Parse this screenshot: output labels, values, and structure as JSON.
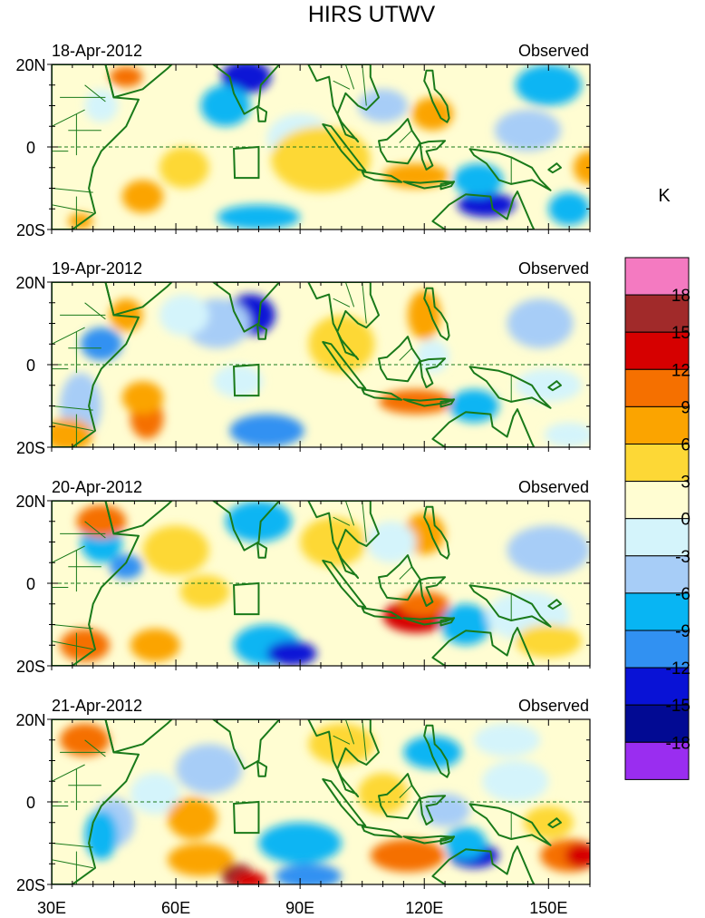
{
  "chart_data": {
    "type": "heatmap",
    "title": "HIRS UTWV",
    "colorbar": {
      "label": "K",
      "levels": [
        -18,
        -15,
        -12,
        -9,
        -6,
        -3,
        0,
        3,
        6,
        9,
        12,
        15,
        18
      ],
      "level_labels": [
        "18",
        "15",
        "12",
        "9",
        "6",
        "3",
        "0",
        "-3",
        "-6",
        "-9",
        "-12",
        "-15",
        "-18"
      ],
      "colors_top_to_bottom": [
        "#f47ac1",
        "#a12a2a",
        "#d60000",
        "#f57000",
        "#fba400",
        "#fdd836",
        "#fffdd2",
        "#d4f4fb",
        "#a7cdf7",
        "#08b5f3",
        "#3191f2",
        "#0912d6",
        "#020a93",
        "#9a2df0"
      ]
    },
    "x_ticks": [
      "30E",
      "60E",
      "90E",
      "120E",
      "150E"
    ],
    "x_tick_values": [
      30,
      60,
      90,
      120,
      150
    ],
    "xlim": [
      30,
      160
    ],
    "y_ticks": [
      "20N",
      "0",
      "20S"
    ],
    "y_tick_values": [
      20,
      0,
      -20
    ],
    "ylim": [
      -20,
      20
    ],
    "panels": [
      {
        "date": "18-Apr-2012",
        "label": "Observed"
      },
      {
        "date": "19-Apr-2012",
        "label": "Observed"
      },
      {
        "date": "20-Apr-2012",
        "label": "Observed"
      },
      {
        "date": "21-Apr-2012",
        "label": "Observed"
      }
    ],
    "anomaly_blobs": [
      [
        [
          37,
          -18,
          3,
          2,
          6
        ],
        [
          48,
          17,
          4,
          2.5,
          9
        ],
        [
          42,
          10,
          4,
          4,
          -3
        ],
        [
          52,
          -12,
          5,
          4,
          6
        ],
        [
          77,
          17,
          6,
          4,
          -15
        ],
        [
          72,
          10,
          6,
          5,
          -9
        ],
        [
          90,
          2,
          8,
          6,
          -3
        ],
        [
          80,
          -17,
          10,
          3,
          -9
        ],
        [
          118,
          -7,
          8,
          3,
          6
        ],
        [
          135,
          -14,
          7,
          3,
          -15
        ],
        [
          133,
          -8,
          6,
          4,
          -9
        ],
        [
          122,
          8,
          5,
          4,
          6
        ],
        [
          110,
          10,
          6,
          4,
          -6
        ],
        [
          150,
          15,
          8,
          5,
          -9
        ],
        [
          145,
          4,
          8,
          5,
          -6
        ],
        [
          155,
          -15,
          5,
          4,
          -9
        ],
        [
          95,
          -3,
          12,
          8,
          3
        ],
        [
          62,
          -5,
          6,
          5,
          3
        ],
        [
          160,
          -5,
          4,
          4,
          6
        ]
      ],
      [
        [
          78,
          12,
          6,
          5,
          -15
        ],
        [
          70,
          10,
          8,
          6,
          -6
        ],
        [
          42,
          5,
          5,
          4,
          -12
        ],
        [
          37,
          -10,
          5,
          8,
          -6
        ],
        [
          34,
          -17,
          6,
          4,
          6
        ],
        [
          48,
          12,
          4,
          4,
          6
        ],
        [
          53,
          -13,
          4,
          5,
          9
        ],
        [
          52,
          -8,
          5,
          4,
          6
        ],
        [
          82,
          -16,
          9,
          4,
          -12
        ],
        [
          75,
          -4,
          6,
          4,
          -3
        ],
        [
          118,
          -9,
          9,
          3,
          9
        ],
        [
          132,
          -10,
          6,
          4,
          -9
        ],
        [
          120,
          12,
          4,
          6,
          6
        ],
        [
          122,
          2,
          4,
          4,
          -3
        ],
        [
          148,
          10,
          8,
          6,
          -6
        ],
        [
          150,
          -5,
          8,
          4,
          -3
        ],
        [
          100,
          5,
          8,
          7,
          3
        ],
        [
          155,
          -17,
          6,
          3,
          -3
        ],
        [
          62,
          12,
          6,
          5,
          -3
        ]
      ],
      [
        [
          42,
          10,
          5,
          5,
          -9
        ],
        [
          48,
          4,
          4,
          3,
          -12
        ],
        [
          38,
          -15,
          6,
          4,
          9
        ],
        [
          42,
          15,
          6,
          4,
          9
        ],
        [
          55,
          -15,
          6,
          4,
          6
        ],
        [
          60,
          8,
          8,
          6,
          3
        ],
        [
          80,
          15,
          8,
          5,
          -9
        ],
        [
          82,
          -15,
          8,
          5,
          -9
        ],
        [
          88,
          -17,
          6,
          3,
          -15
        ],
        [
          118,
          -8,
          8,
          4,
          12
        ],
        [
          120,
          -5,
          6,
          3,
          9
        ],
        [
          130,
          -10,
          6,
          5,
          -9
        ],
        [
          145,
          -8,
          10,
          6,
          -3
        ],
        [
          150,
          -14,
          8,
          4,
          3
        ],
        [
          120,
          12,
          5,
          5,
          6
        ],
        [
          112,
          10,
          6,
          5,
          -3
        ],
        [
          98,
          10,
          8,
          6,
          3
        ],
        [
          150,
          8,
          10,
          6,
          -6
        ],
        [
          67,
          -2,
          6,
          4,
          3
        ]
      ],
      [
        [
          38,
          15,
          6,
          4,
          9
        ],
        [
          45,
          -5,
          5,
          6,
          -6
        ],
        [
          42,
          -8,
          4,
          6,
          -9
        ],
        [
          55,
          2,
          6,
          5,
          -3
        ],
        [
          68,
          8,
          8,
          6,
          -6
        ],
        [
          64,
          -4,
          6,
          5,
          6
        ],
        [
          66,
          -14,
          8,
          4,
          6
        ],
        [
          75,
          -18,
          4,
          3,
          15
        ],
        [
          78,
          -19,
          4,
          2,
          12
        ],
        [
          92,
          -18,
          8,
          3,
          -12
        ],
        [
          90,
          -10,
          10,
          5,
          -9
        ],
        [
          116,
          -13,
          9,
          4,
          9
        ],
        [
          132,
          -13,
          6,
          3,
          -15
        ],
        [
          130,
          -10,
          5,
          4,
          -9
        ],
        [
          155,
          -13,
          7,
          4,
          9
        ],
        [
          158,
          -13,
          4,
          3,
          12
        ],
        [
          122,
          12,
          7,
          4,
          -9
        ],
        [
          125,
          -2,
          6,
          4,
          -6
        ],
        [
          142,
          5,
          8,
          5,
          -3
        ],
        [
          110,
          2,
          6,
          5,
          3
        ],
        [
          150,
          -5,
          6,
          4,
          3
        ],
        [
          100,
          14,
          8,
          5,
          3
        ],
        [
          140,
          15,
          8,
          4,
          -3
        ]
      ]
    ]
  }
}
